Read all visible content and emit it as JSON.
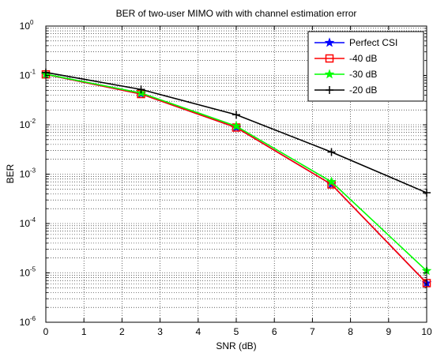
{
  "chart_data": {
    "type": "line",
    "title": "BER of two-user MIMO with with channel estimation error",
    "xlabel": "SNR (dB)",
    "ylabel": "BER",
    "xlim": [
      0,
      10
    ],
    "ylim": [
      1e-06,
      1
    ],
    "yscale": "log",
    "grid": true,
    "legend_position": "top-right",
    "xticks": [
      "0",
      "1",
      "2",
      "3",
      "4",
      "5",
      "6",
      "7",
      "8",
      "9",
      "10"
    ],
    "yticks": [
      {
        "base": "10",
        "exp": "-6"
      },
      {
        "base": "10",
        "exp": "-5"
      },
      {
        "base": "10",
        "exp": "-4"
      },
      {
        "base": "10",
        "exp": "-3"
      },
      {
        "base": "10",
        "exp": "-2"
      },
      {
        "base": "10",
        "exp": "-1"
      },
      {
        "base": "10",
        "exp": "0"
      }
    ],
    "x": [
      0,
      2.5,
      5,
      7.5,
      10
    ],
    "series": [
      {
        "name": "Perfect CSI",
        "values": [
          0.105,
          0.042,
          0.0088,
          0.00062,
          6.2e-06
        ],
        "color": "#0000ff",
        "marker": "star"
      },
      {
        "name": "-40 dB",
        "values": [
          0.105,
          0.042,
          0.0088,
          0.00062,
          6.2e-06
        ],
        "color": "#ff0000",
        "marker": "square"
      },
      {
        "name": "-30 dB",
        "values": [
          0.106,
          0.044,
          0.0094,
          0.0007,
          1.1e-05
        ],
        "color": "#00ff00",
        "marker": "star"
      },
      {
        "name": "-20 dB",
        "values": [
          0.115,
          0.052,
          0.016,
          0.0028,
          0.00042
        ],
        "color": "#000000",
        "marker": "plus"
      }
    ]
  }
}
